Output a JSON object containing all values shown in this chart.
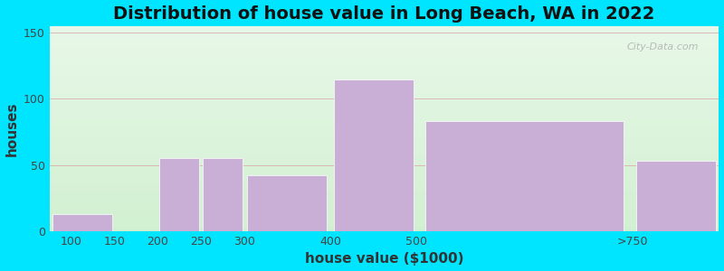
{
  "title": "Distribution of house value in Long Beach, WA in 2022",
  "xlabel": "house value ($1000)",
  "ylabel": "houses",
  "bin_edges": [
    75,
    150,
    175,
    200,
    250,
    300,
    400,
    500,
    800
  ],
  "bar_values": [
    13,
    0,
    0,
    55,
    55,
    42,
    115,
    83,
    53
  ],
  "xtick_positions": [
    100,
    150,
    200,
    250,
    300,
    400,
    500,
    750
  ],
  "xtick_labels": [
    "100",
    "150",
    "200",
    "250",
    "300",
    "400",
    "500",
    ">750"
  ],
  "bar_color": "#c9aed6",
  "ylim": [
    0,
    155
  ],
  "yticks": [
    0,
    50,
    100,
    150
  ],
  "xlim": [
    75,
    850
  ],
  "background_outer": "#00e5ff",
  "grad_top": "#e8f5e8",
  "grad_bottom": "#f5fff5",
  "title_fontsize": 14,
  "axis_label_fontsize": 11,
  "tick_fontsize": 9,
  "watermark_text": "City-Data.com",
  "grid_color": "#ddaaaa",
  "tick_color": "#444444"
}
